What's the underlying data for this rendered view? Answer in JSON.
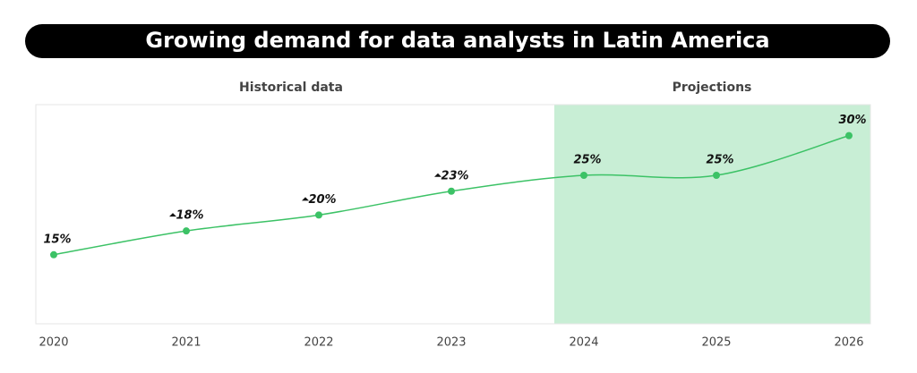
{
  "chart_data": {
    "type": "line",
    "title": "Growing demand for data analysts in Latin America",
    "sections": [
      "Historical data",
      "Projections"
    ],
    "categories": [
      "2020",
      "2021",
      "2022",
      "2023",
      "2024",
      "2025",
      "2026"
    ],
    "values": [
      15,
      18,
      20,
      23,
      25,
      25,
      30
    ],
    "value_labels": [
      "15%",
      "18%",
      "20%",
      "23%",
      "25%",
      "25%",
      "30%"
    ],
    "color": "#3cc266",
    "ylim": [
      6.3,
      33.9
    ]
  }
}
